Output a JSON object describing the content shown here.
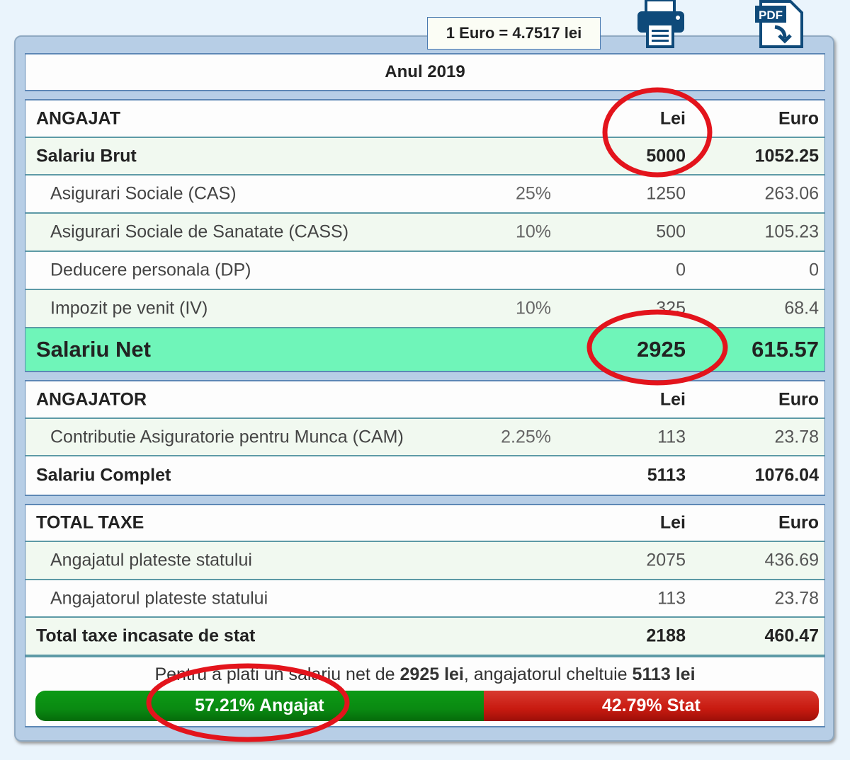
{
  "exchange_rate": "1 Euro = 4.7517 lei",
  "toolbar": {
    "print_icon": "printer-icon",
    "pdf_icon": "pdf-download-icon",
    "pdf_label": "PDF"
  },
  "year_title": "Anul 2019",
  "angajat": {
    "header": {
      "label": "ANGAJAT",
      "lei": "Lei",
      "euro": "Euro"
    },
    "brut": {
      "label": "Salariu Brut",
      "lei": "5000",
      "euro": "1052.25"
    },
    "rows": [
      {
        "label": "Asigurari Sociale (CAS)",
        "pct": "25%",
        "lei": "1250",
        "euro": "263.06"
      },
      {
        "label": "Asigurari Sociale de Sanatate (CASS)",
        "pct": "10%",
        "lei": "500",
        "euro": "105.23"
      },
      {
        "label": "Deducere personala (DP)",
        "pct": "",
        "lei": "0",
        "euro": "0"
      },
      {
        "label": "Impozit pe venit (IV)",
        "pct": "10%",
        "lei": "325",
        "euro": "68.4"
      }
    ],
    "net": {
      "label": "Salariu Net",
      "lei": "2925",
      "euro": "615.57"
    }
  },
  "angajator": {
    "header": {
      "label": "ANGAJATOR",
      "lei": "Lei",
      "euro": "Euro"
    },
    "cam": {
      "label": "Contributie Asiguratorie pentru Munca (CAM)",
      "pct": "2.25%",
      "lei": "113",
      "euro": "23.78"
    },
    "complet": {
      "label": "Salariu Complet",
      "lei": "5113",
      "euro": "1076.04"
    }
  },
  "total": {
    "header": {
      "label": "TOTAL TAXE",
      "lei": "Lei",
      "euro": "Euro"
    },
    "rows": [
      {
        "label": "Angajatul plateste statului",
        "lei": "2075",
        "euro": "436.69"
      },
      {
        "label": "Angajatorul plateste statului",
        "lei": "113",
        "euro": "23.78"
      }
    ],
    "sum": {
      "label": "Total taxe incasate de stat",
      "lei": "2188",
      "euro": "460.47"
    }
  },
  "summary": {
    "t1": "Pentru a plati un salariu net de ",
    "net": "2925 lei",
    "t2": ", angajatorul cheltuie ",
    "cost": "5113 lei"
  },
  "split": {
    "employee_pct": 57.21,
    "employee_label": "57.21% Angajat",
    "state_pct": 42.79,
    "state_label": "42.79% Stat",
    "employee_color": "#0a8a12",
    "state_color": "#c81a10"
  }
}
